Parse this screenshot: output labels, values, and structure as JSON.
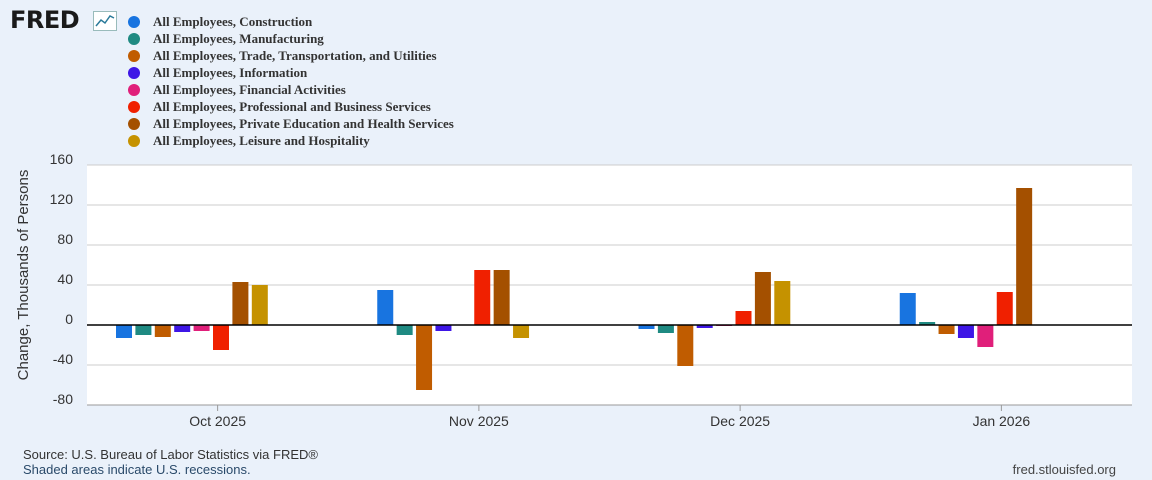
{
  "logo": {
    "text": "FRED"
  },
  "colors": {
    "background": "#eaf1fa",
    "plot_bg": "#ffffff",
    "grid": "#cccccc",
    "zero_line": "#000000"
  },
  "chart_data": {
    "type": "bar",
    "categories": [
      "Oct 2025",
      "Nov 2025",
      "Dec 2025",
      "Jan 2026"
    ],
    "ylabel": "Change, Thousands of Persons",
    "ylim": [
      -80,
      160
    ],
    "yticks": [
      -80,
      -40,
      0,
      40,
      80,
      120,
      160
    ],
    "ytick_labels": [
      "-80",
      "-40",
      "0",
      "40",
      "80",
      "120",
      "160"
    ],
    "series": [
      {
        "name": "All Employees, Construction",
        "color": "#1874e0",
        "values": [
          -13,
          35,
          -4,
          32
        ]
      },
      {
        "name": "All Employees, Manufacturing",
        "color": "#1f8a82",
        "values": [
          -10,
          -10,
          -8,
          3
        ]
      },
      {
        "name": "All Employees, Trade, Transportation, and Utilities",
        "color": "#c05c00",
        "values": [
          -12,
          -65,
          -41,
          -9
        ]
      },
      {
        "name": "All Employees, Information",
        "color": "#3e16e6",
        "values": [
          -7,
          -6,
          -3,
          -13
        ]
      },
      {
        "name": "All Employees, Financial Activities",
        "color": "#e01f7a",
        "values": [
          -6,
          0,
          -1,
          -22
        ]
      },
      {
        "name": "All Employees, Professional and Business Services",
        "color": "#f02000",
        "values": [
          -25,
          55,
          14,
          33
        ]
      },
      {
        "name": "All Employees, Private Education and Health Services",
        "color": "#a45000",
        "values": [
          43,
          55,
          53,
          137
        ]
      },
      {
        "name": "All Employees, Leisure and Hospitality",
        "color": "#c59200",
        "values": [
          40,
          -13,
          44,
          0
        ]
      }
    ]
  },
  "footer": {
    "source": "Source: U.S. Bureau of Labor Statistics via FRED®",
    "recessions": "Shaded areas indicate U.S. recessions.",
    "url": "fred.stlouisfed.org"
  }
}
